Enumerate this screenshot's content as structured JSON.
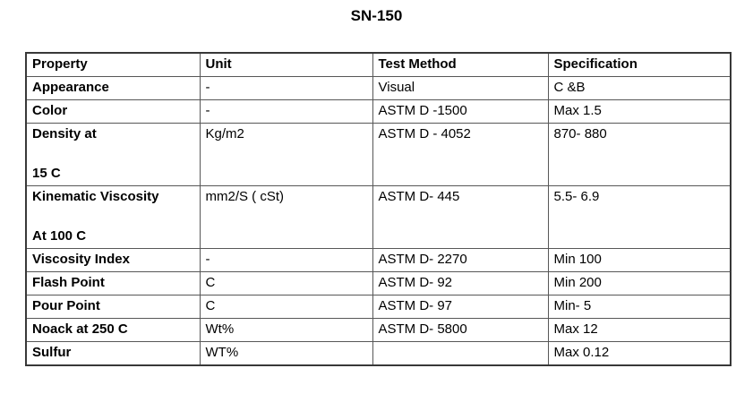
{
  "page": {
    "title": "SN-150"
  },
  "table": {
    "headers": [
      "Property",
      "Unit",
      "Test Method",
      "Specification"
    ],
    "rows": [
      {
        "property_lines": [
          "Appearance"
        ],
        "unit": "-",
        "test_method": "Visual",
        "specification": "C &B"
      },
      {
        "property_lines": [
          "Color"
        ],
        "unit": "-",
        "test_method": "ASTM D -1500",
        "specification": "Max 1.5"
      },
      {
        "property_lines": [
          "Density at",
          "",
          "15 C"
        ],
        "unit": "Kg/m2",
        "test_method": "ASTM D - 4052",
        "specification": "870- 880"
      },
      {
        "property_lines": [
          "Kinematic Viscosity",
          "",
          "At 100 C"
        ],
        "unit": "mm2/S ( cSt)",
        "test_method": "ASTM D- 445",
        "specification": "5.5- 6.9"
      },
      {
        "property_lines": [
          "Viscosity Index"
        ],
        "unit": "-",
        "test_method": "ASTM D- 2270",
        "specification": "Min 100"
      },
      {
        "property_lines": [
          "Flash Point"
        ],
        "unit": "C",
        "test_method": "ASTM D- 92",
        "specification": "Min 200"
      },
      {
        "property_lines": [
          "Pour Point"
        ],
        "unit": "C",
        "test_method": "ASTM D- 97",
        "specification": "Min- 5"
      },
      {
        "property_lines": [
          "Noack at 250 C"
        ],
        "unit": "Wt%",
        "test_method": "ASTM D- 5800",
        "specification": "Max 12"
      },
      {
        "property_lines": [
          "Sulfur"
        ],
        "unit": "WT%",
        "test_method": "",
        "specification": "Max 0.12"
      }
    ]
  }
}
